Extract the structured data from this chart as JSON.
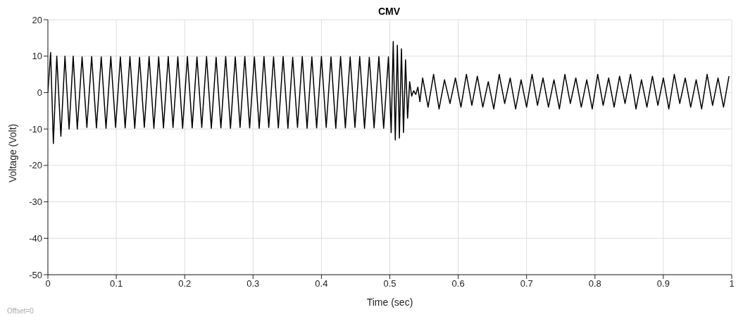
{
  "chart_data": {
    "type": "line",
    "title": "CMV",
    "xlabel": "Time (sec)",
    "ylabel": "Voltage (Volt)",
    "annotations": [
      "Offset=0"
    ],
    "xlim": [
      0,
      1
    ],
    "xticks": [
      0,
      0.1,
      0.2,
      0.3,
      0.4,
      0.5,
      0.6,
      0.7,
      0.8,
      0.9,
      1
    ],
    "ylim": [
      -50,
      20
    ],
    "yticks": [
      -50,
      -40,
      -30,
      -20,
      -10,
      0,
      10,
      20
    ],
    "grid": true,
    "legend": false,
    "marker": "none",
    "line_style": "solid",
    "series": [
      {
        "color": "#000000",
        "x": [
          0,
          0.004,
          0.008,
          0.013,
          0.019,
          0.025,
          0.031,
          0.037,
          0.043,
          0.05,
          0.057,
          0.064,
          0.071,
          0.078,
          0.085,
          0.092,
          0.099,
          0.106,
          0.113,
          0.12,
          0.127,
          0.134,
          0.141,
          0.148,
          0.155,
          0.162,
          0.169,
          0.176,
          0.183,
          0.19,
          0.197,
          0.204,
          0.211,
          0.218,
          0.225,
          0.232,
          0.239,
          0.246,
          0.253,
          0.26,
          0.267,
          0.274,
          0.281,
          0.288,
          0.295,
          0.302,
          0.309,
          0.316,
          0.323,
          0.33,
          0.337,
          0.344,
          0.351,
          0.358,
          0.365,
          0.372,
          0.379,
          0.386,
          0.393,
          0.4,
          0.407,
          0.414,
          0.421,
          0.428,
          0.435,
          0.442,
          0.449,
          0.456,
          0.463,
          0.47,
          0.477,
          0.484,
          0.491,
          0.498,
          0.502,
          0.505,
          0.508,
          0.511,
          0.514,
          0.517,
          0.52,
          0.523,
          0.526,
          0.529,
          0.532,
          0.535,
          0.538,
          0.541,
          0.544,
          0.548,
          0.556,
          0.564,
          0.572,
          0.58,
          0.588,
          0.596,
          0.604,
          0.612,
          0.62,
          0.628,
          0.636,
          0.644,
          0.652,
          0.66,
          0.668,
          0.676,
          0.684,
          0.692,
          0.7,
          0.708,
          0.716,
          0.724,
          0.732,
          0.74,
          0.748,
          0.756,
          0.764,
          0.772,
          0.78,
          0.788,
          0.796,
          0.804,
          0.812,
          0.82,
          0.828,
          0.836,
          0.844,
          0.852,
          0.86,
          0.868,
          0.876,
          0.884,
          0.892,
          0.9,
          0.908,
          0.916,
          0.924,
          0.932,
          0.94,
          0.948,
          0.956,
          0.964,
          0.972,
          0.98,
          0.988,
          0.996
        ],
        "values": [
          0,
          11,
          -14,
          10,
          -12,
          10,
          -10,
          10,
          -10,
          9.8,
          -9.6,
          9.9,
          -9.7,
          9.8,
          -9.8,
          9.9,
          -9.6,
          9.8,
          -9.7,
          9.9,
          -9.8,
          9.7,
          -9.6,
          9.9,
          -9.8,
          9.8,
          -9.7,
          9.9,
          -9.6,
          9.8,
          -9.8,
          9.9,
          -9.7,
          9.8,
          -9.6,
          9.9,
          -9.8,
          9.7,
          -9.7,
          9.9,
          -9.8,
          9.8,
          -9.6,
          9.9,
          -9.7,
          9.8,
          -9.8,
          9.9,
          -9.6,
          9.8,
          -9.7,
          9.9,
          -9.8,
          9.7,
          -9.6,
          9.9,
          -9.8,
          9.8,
          -9.7,
          9.9,
          -9.6,
          9.8,
          -9.8,
          9.9,
          -9.7,
          9.8,
          -9.6,
          9.9,
          -9.8,
          9.7,
          -9.7,
          9.9,
          -9.8,
          9.8,
          -11,
          14,
          -13,
          13,
          -12.5,
          12,
          -11,
          9,
          -7,
          3,
          -1,
          0.5,
          -0.5,
          1.5,
          -2.5,
          4,
          -4,
          5,
          -4.5,
          3.5,
          -3,
          4,
          -4,
          5,
          -3.5,
          4.5,
          -4,
          3,
          -4.5,
          5,
          -3,
          4,
          -4.5,
          3.5,
          -4,
          5,
          -3.5,
          4,
          -4,
          3.5,
          -4.5,
          5,
          -3,
          4,
          -4,
          3.5,
          -4.5,
          5,
          -3.5,
          4,
          -4,
          4.5,
          -3,
          5,
          -4.5,
          3.5,
          -4,
          4.5,
          -3.5,
          4,
          -4.5,
          5,
          -3,
          4,
          -4,
          3.5,
          -4.5,
          5,
          -3.5,
          4,
          -4,
          4.5
        ]
      }
    ]
  }
}
